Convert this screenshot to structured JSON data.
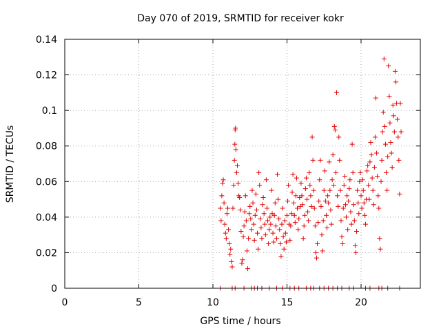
{
  "chart_data": {
    "type": "scatter",
    "title": "Day 070 of 2019, SRMTID for receiver kokr",
    "xlabel": "GPS time / hours",
    "ylabel": "SRMTID / TECUs",
    "xlim": [
      0,
      24
    ],
    "ylim": [
      0,
      0.14
    ],
    "xticks": [
      0,
      5,
      10,
      15,
      20
    ],
    "yticks": [
      0,
      0.02,
      0.04,
      0.06,
      0.08,
      0.1,
      0.12,
      0.14
    ],
    "xtick_labels": [
      "0",
      "5",
      "10",
      "15",
      "20"
    ],
    "ytick_labels": [
      "0",
      "0.02",
      "0.04",
      "0.06",
      "0.08",
      "0.1",
      "0.12",
      "0.14"
    ],
    "grid": true,
    "marker": "+",
    "color": "#e00000",
    "series": [
      {
        "name": "SRMTID",
        "points": [
          [
            10.5,
            0.045
          ],
          [
            10.55,
            0.038
          ],
          [
            10.6,
            0.052
          ],
          [
            10.65,
            0.059
          ],
          [
            10.7,
            0.061
          ],
          [
            10.75,
            0.048
          ],
          [
            10.8,
            0.036
          ],
          [
            10.85,
            0.031
          ],
          [
            10.9,
            0.028
          ],
          [
            10.95,
            0.042
          ],
          [
            11.0,
            0.045
          ],
          [
            11.05,
            0.033
          ],
          [
            11.1,
            0.025
          ],
          [
            11.15,
            0.019
          ],
          [
            11.2,
            0.022
          ],
          [
            11.25,
            0.015
          ],
          [
            11.3,
            0.012
          ],
          [
            11.35,
            0.045
          ],
          [
            11.4,
            0.058
          ],
          [
            11.45,
            0.072
          ],
          [
            11.48,
            0.081
          ],
          [
            11.5,
            0.089
          ],
          [
            11.52,
            0.09
          ],
          [
            11.55,
            0.078
          ],
          [
            11.6,
            0.065
          ],
          [
            11.65,
            0.069
          ],
          [
            11.7,
            0.059
          ],
          [
            11.75,
            0.052
          ],
          [
            11.8,
            0.051
          ],
          [
            11.85,
            0.044
          ],
          [
            11.9,
            0.032
          ],
          [
            11.95,
            0.014
          ],
          [
            12.0,
            0.016
          ],
          [
            12.05,
            0.029
          ],
          [
            12.1,
            0.035
          ],
          [
            12.15,
            0.043
          ],
          [
            12.2,
            0.052
          ],
          [
            12.25,
            0.038
          ],
          [
            12.3,
            0.021
          ],
          [
            12.35,
            0.011
          ],
          [
            12.4,
            0.028
          ],
          [
            12.45,
            0.042
          ],
          [
            12.5,
            0.046
          ],
          [
            12.55,
            0.039
          ],
          [
            12.6,
            0.033
          ],
          [
            12.65,
            0.055
          ],
          [
            12.7,
            0.048
          ],
          [
            12.75,
            0.036
          ],
          [
            12.8,
            0.027
          ],
          [
            12.85,
            0.041
          ],
          [
            12.9,
            0.053
          ],
          [
            12.95,
            0.044
          ],
          [
            13.0,
            0.031
          ],
          [
            13.05,
            0.022
          ],
          [
            13.1,
            0.065
          ],
          [
            13.15,
            0.058
          ],
          [
            13.2,
            0.039
          ],
          [
            13.25,
            0.034
          ],
          [
            13.3,
            0.028
          ],
          [
            13.35,
            0.047
          ],
          [
            13.4,
            0.051
          ],
          [
            13.45,
            0.042
          ],
          [
            13.5,
            0.036
          ],
          [
            13.55,
            0.03
          ],
          [
            13.6,
            0.061
          ],
          [
            13.65,
            0.045
          ],
          [
            13.7,
            0.038
          ],
          [
            13.75,
            0.025
          ],
          [
            13.8,
            0.033
          ],
          [
            13.85,
            0.04
          ],
          [
            13.9,
            0.036
          ],
          [
            13.95,
            0.055
          ],
          [
            14.0,
            0.042
          ],
          [
            14.05,
            0.031
          ],
          [
            14.1,
            0.026
          ],
          [
            14.15,
            0.041
          ],
          [
            14.2,
            0.048
          ],
          [
            14.25,
            0.035
          ],
          [
            14.3,
            0.028
          ],
          [
            14.35,
            0.064
          ],
          [
            14.4,
            0.05
          ],
          [
            14.45,
            0.039
          ],
          [
            14.5,
            0.033
          ],
          [
            14.55,
            0.025
          ],
          [
            14.6,
            0.018
          ],
          [
            14.65,
            0.036
          ],
          [
            14.7,
            0.045
          ],
          [
            14.75,
            0.029
          ],
          [
            14.8,
            0.022
          ],
          [
            14.85,
            0.038
          ],
          [
            14.9,
            0.031
          ],
          [
            14.95,
            0.026
          ],
          [
            15.0,
            0.041
          ],
          [
            15.05,
            0.049
          ],
          [
            15.1,
            0.058
          ],
          [
            15.15,
            0.036
          ],
          [
            15.2,
            0.027
          ],
          [
            15.25,
            0.035
          ],
          [
            15.3,
            0.042
          ],
          [
            15.35,
            0.054
          ],
          [
            15.4,
            0.064
          ],
          [
            15.45,
            0.048
          ],
          [
            15.5,
            0.041
          ],
          [
            15.55,
            0.037
          ],
          [
            15.6,
            0.052
          ],
          [
            15.65,
            0.062
          ],
          [
            15.7,
            0.045
          ],
          [
            15.75,
            0.033
          ],
          [
            15.8,
            0.039
          ],
          [
            15.85,
            0.051
          ],
          [
            15.9,
            0.046
          ],
          [
            15.95,
            0.059
          ],
          [
            16.0,
            0.052
          ],
          [
            16.05,
            0.047
          ],
          [
            16.1,
            0.028
          ],
          [
            16.15,
            0.035
          ],
          [
            16.2,
            0.041
          ],
          [
            16.25,
            0.056
          ],
          [
            16.3,
            0.062
          ],
          [
            16.35,
            0.05
          ],
          [
            16.4,
            0.043
          ],
          [
            16.45,
            0.038
          ],
          [
            16.5,
            0.065
          ],
          [
            16.55,
            0.058
          ],
          [
            16.6,
            0.052
          ],
          [
            16.65,
            0.046
          ],
          [
            16.7,
            0.085
          ],
          [
            16.75,
            0.072
          ],
          [
            16.8,
            0.055
          ],
          [
            16.85,
            0.045
          ],
          [
            16.9,
            0.035
          ],
          [
            16.95,
            0.02
          ],
          [
            17.0,
            0.017
          ],
          [
            17.05,
            0.025
          ],
          [
            17.1,
            0.037
          ],
          [
            17.15,
            0.049
          ],
          [
            17.2,
            0.061
          ],
          [
            17.25,
            0.072
          ],
          [
            17.3,
            0.046
          ],
          [
            17.35,
            0.03
          ],
          [
            17.4,
            0.021
          ],
          [
            17.45,
            0.038
          ],
          [
            17.5,
            0.055
          ],
          [
            17.55,
            0.066
          ],
          [
            17.6,
            0.049
          ],
          [
            17.65,
            0.041
          ],
          [
            17.7,
            0.034
          ],
          [
            17.75,
            0.052
          ],
          [
            17.8,
            0.048
          ],
          [
            17.85,
            0.071
          ],
          [
            17.9,
            0.055
          ],
          [
            17.95,
            0.044
          ],
          [
            18.0,
            0.036
          ],
          [
            18.05,
            0.061
          ],
          [
            18.1,
            0.075
          ],
          [
            18.15,
            0.058
          ],
          [
            18.2,
            0.091
          ],
          [
            18.25,
            0.089
          ],
          [
            18.3,
            0.065
          ],
          [
            18.35,
            0.11
          ],
          [
            18.4,
            0.052
          ],
          [
            18.45,
            0.046
          ],
          [
            18.5,
            0.085
          ],
          [
            18.55,
            0.072
          ],
          [
            18.6,
            0.055
          ],
          [
            18.65,
            0.038
          ],
          [
            18.7,
            0.029
          ],
          [
            18.75,
            0.025
          ],
          [
            18.8,
            0.045
          ],
          [
            18.85,
            0.058
          ],
          [
            18.9,
            0.063
          ],
          [
            18.95,
            0.047
          ],
          [
            19.0,
            0.04
          ],
          [
            19.05,
            0.052
          ],
          [
            19.1,
            0.033
          ],
          [
            19.15,
            0.049
          ],
          [
            19.2,
            0.056
          ],
          [
            19.25,
            0.061
          ],
          [
            19.3,
            0.043
          ],
          [
            19.35,
            0.036
          ],
          [
            19.4,
            0.081
          ],
          [
            19.45,
            0.065
          ],
          [
            19.5,
            0.047
          ],
          [
            19.55,
            0.038
          ],
          [
            19.6,
            0.024
          ],
          [
            19.65,
            0.02
          ],
          [
            19.7,
            0.032
          ],
          [
            19.75,
            0.055
          ],
          [
            19.8,
            0.048
          ],
          [
            19.85,
            0.042
          ],
          [
            19.9,
            0.06
          ],
          [
            19.95,
            0.065
          ],
          [
            20.0,
            0.052
          ],
          [
            20.05,
            0.045
          ],
          [
            20.1,
            0.061
          ],
          [
            20.15,
            0.055
          ],
          [
            20.2,
            0.048
          ],
          [
            20.25,
            0.041
          ],
          [
            20.3,
            0.036
          ],
          [
            20.35,
            0.05
          ],
          [
            20.4,
            0.066
          ],
          [
            20.45,
            0.069
          ],
          [
            20.5,
            0.058
          ],
          [
            20.55,
            0.05
          ],
          [
            20.6,
            0.071
          ],
          [
            20.65,
            0.082
          ],
          [
            20.7,
            0.075
          ],
          [
            20.75,
            0.062
          ],
          [
            20.8,
            0.055
          ],
          [
            20.85,
            0.047
          ],
          [
            20.9,
            0.068
          ],
          [
            20.95,
            0.085
          ],
          [
            21.0,
            0.107
          ],
          [
            21.05,
            0.076
          ],
          [
            21.1,
            0.063
          ],
          [
            21.15,
            0.052
          ],
          [
            21.2,
            0.045
          ],
          [
            21.25,
            0.028
          ],
          [
            21.3,
            0.022
          ],
          [
            21.35,
            0.06
          ],
          [
            21.4,
            0.072
          ],
          [
            21.45,
            0.088
          ],
          [
            21.5,
            0.099
          ],
          [
            21.55,
            0.129
          ],
          [
            21.6,
            0.091
          ],
          [
            21.65,
            0.081
          ],
          [
            21.7,
            0.065
          ],
          [
            21.75,
            0.055
          ],
          [
            21.8,
            0.074
          ],
          [
            21.85,
            0.125
          ],
          [
            21.9,
            0.108
          ],
          [
            21.95,
            0.093
          ],
          [
            22.0,
            0.082
          ],
          [
            22.05,
            0.076
          ],
          [
            22.1,
            0.068
          ],
          [
            22.15,
            0.103
          ],
          [
            22.2,
            0.097
          ],
          [
            22.25,
            0.088
          ],
          [
            22.3,
            0.122
          ],
          [
            22.35,
            0.116
          ],
          [
            22.4,
            0.104
          ],
          [
            22.45,
            0.095
          ],
          [
            22.5,
            0.085
          ],
          [
            22.55,
            0.072
          ],
          [
            22.6,
            0.053
          ],
          [
            22.65,
            0.104
          ],
          [
            22.7,
            0.088
          ]
        ]
      }
    ],
    "zero_points_x": [
      10.5,
      11.3,
      11.5,
      12.1,
      12.6,
      12.8,
      13.0,
      13.3,
      13.8,
      14.3,
      14.7,
      15.2,
      15.5,
      15.8,
      16.3,
      16.6,
      16.8,
      17.2,
      17.5,
      17.8,
      18.1,
      18.4,
      18.7,
      19.2,
      19.5,
      20.3,
      20.6,
      21.2,
      21.4,
      21.8,
      22.6
    ]
  }
}
